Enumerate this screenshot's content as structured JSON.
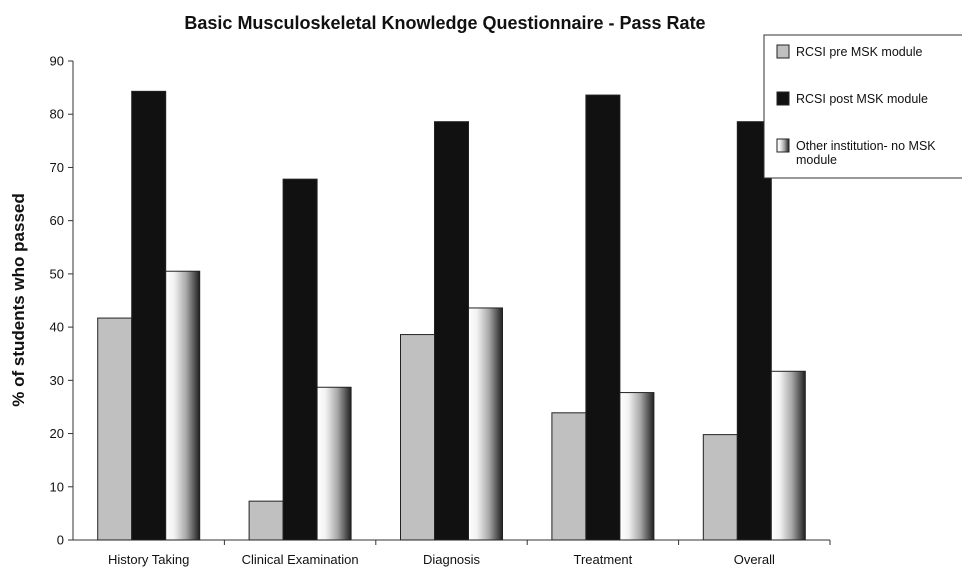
{
  "chart_data": {
    "type": "bar",
    "title": "Basic Musculoskeletal Knowledge Questionnaire - Pass Rate",
    "xlabel": "",
    "ylabel": "% of students who passed",
    "ylim": [
      0,
      90
    ],
    "yticks": [
      0,
      10,
      20,
      30,
      40,
      50,
      60,
      70,
      80,
      90
    ],
    "categories": [
      "History Taking",
      "Clinical Examination",
      "Diagnosis",
      "Treatment",
      "Overall"
    ],
    "series": [
      {
        "name": "RCSI pre MSK module",
        "values": [
          41.7,
          7.3,
          38.6,
          23.9,
          19.8
        ],
        "color": "#c0c0c0"
      },
      {
        "name": "RCSI post MSK module",
        "values": [
          84.3,
          67.8,
          78.6,
          83.6,
          78.6
        ],
        "color": "#111111"
      },
      {
        "name": "Other institution- no MSK module",
        "values": [
          50.5,
          28.7,
          43.6,
          27.7,
          31.7
        ],
        "color": "gradient"
      }
    ],
    "grid": false,
    "legend": "top-right"
  }
}
